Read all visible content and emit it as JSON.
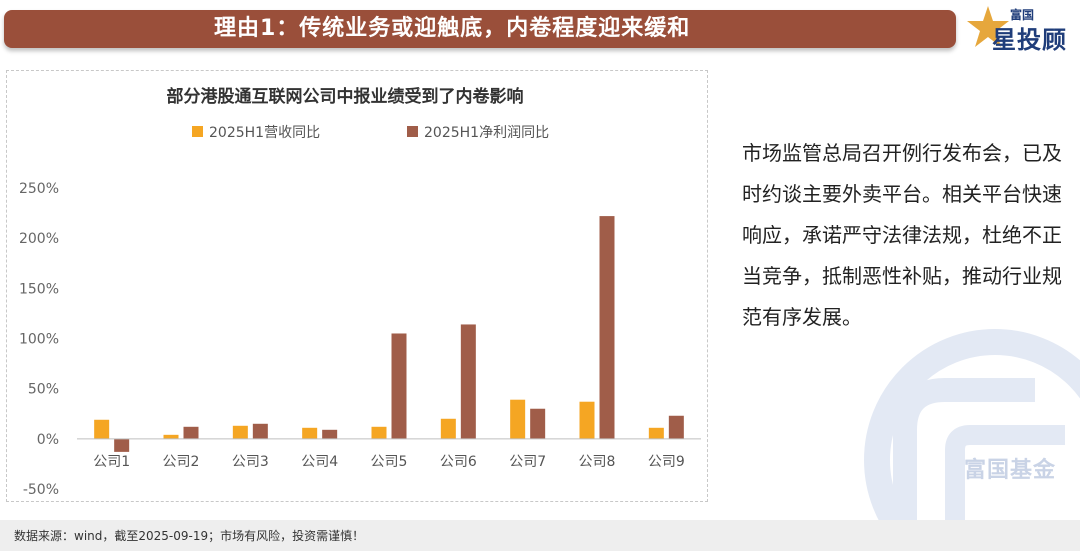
{
  "header": {
    "title": "理由1：传统业务或迎触底，内卷程度迎来缓和"
  },
  "logo": {
    "small": "富国",
    "big": "星投顾",
    "icon": "star-icon"
  },
  "chart_data": {
    "type": "bar",
    "title": "部分港股通互联网公司中报业绩受到了内卷影响",
    "categories": [
      "公司1",
      "公司2",
      "公司3",
      "公司4",
      "公司5",
      "公司6",
      "公司7",
      "公司8",
      "公司9"
    ],
    "series": [
      {
        "name": "2025H1营收同比",
        "color": "#f5a623",
        "values": [
          19,
          4,
          13,
          11,
          12,
          20,
          39,
          37,
          11
        ]
      },
      {
        "name": "2025H1净利润同比",
        "color": "#a05d49",
        "values": [
          -13,
          12,
          15,
          9,
          105,
          114,
          30,
          222,
          23
        ]
      }
    ],
    "ylim": [
      -50,
      250
    ],
    "yticks": [
      -50,
      0,
      50,
      100,
      150,
      200,
      250
    ],
    "ytick_labels": [
      "-50%",
      "0%",
      "50%",
      "100%",
      "150%",
      "200%",
      "250%"
    ],
    "legend": "top",
    "grid": false
  },
  "side_text": "市场监管总局召开例行发布会，已及时约谈主要外卖平台。相关平台快速响应，承诺严守法律法规，杜绝不正当竞争，抵制恶性补贴，推动行业规范有序发展。",
  "watermark": {
    "text": "富国基金"
  },
  "footer": {
    "text": "数据来源：wind，截至2025-09-19；市场有风险，投资需谨慎！"
  }
}
